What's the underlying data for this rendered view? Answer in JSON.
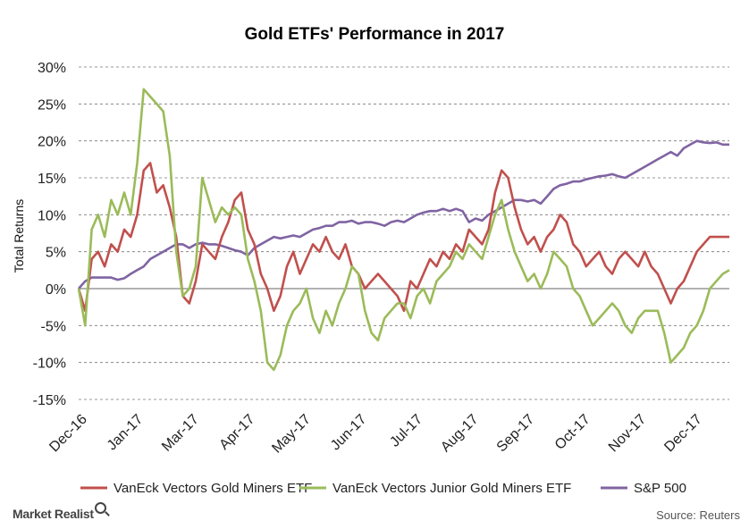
{
  "chart_data": {
    "type": "line",
    "title": "Gold ETFs' Performance in 2017",
    "ylabel": "Total Returns",
    "xlabel": "",
    "ylim": [
      -15,
      30
    ],
    "y_ticks": [
      "30%",
      "25%",
      "20%",
      "15%",
      "10%",
      "5%",
      "0%",
      "-5%",
      "-10%",
      "-15%"
    ],
    "y_tick_values": [
      30,
      25,
      20,
      15,
      10,
      5,
      0,
      -5,
      -10,
      -15
    ],
    "x_ticks": [
      "Dec-16",
      "Jan-17",
      "Mar-17",
      "Apr-17",
      "May-17",
      "Jun-17",
      "Jul-17",
      "Aug-17",
      "Sep-17",
      "Oct-17",
      "Nov-17",
      "Dec-17"
    ],
    "grid": "horizontal dashed",
    "legend_position": "bottom",
    "x_index_max": 100,
    "series": [
      {
        "name": "VanEck Vectors Gold Miners ETF",
        "color": "#c0504d",
        "x": [
          0,
          1,
          2,
          3,
          4,
          5,
          6,
          7,
          8,
          9,
          10,
          11,
          12,
          13,
          14,
          15,
          16,
          17,
          18,
          19,
          20,
          21,
          22,
          23,
          24,
          25,
          26,
          27,
          28,
          29,
          30,
          31,
          32,
          33,
          34,
          35,
          36,
          37,
          38,
          39,
          40,
          41,
          42,
          43,
          44,
          45,
          46,
          47,
          48,
          49,
          50,
          51,
          52,
          53,
          54,
          55,
          56,
          57,
          58,
          59,
          60,
          61,
          62,
          63,
          64,
          65,
          66,
          67,
          68,
          69,
          70,
          71,
          72,
          73,
          74,
          75,
          76,
          77,
          78,
          79,
          80,
          81,
          82,
          83,
          84,
          85,
          86,
          87,
          88,
          89,
          90,
          91,
          92,
          93,
          94,
          95,
          96,
          97,
          98,
          99,
          100
        ],
        "values": [
          0,
          -3,
          4,
          5,
          3,
          6,
          5,
          8,
          7,
          10,
          16,
          17,
          13,
          14,
          11,
          7,
          -1,
          -2,
          1,
          6,
          5,
          4,
          7,
          9,
          12,
          13,
          8,
          6,
          2,
          0,
          -3,
          -1,
          3,
          5,
          2,
          4,
          6,
          5,
          7,
          5,
          4,
          6,
          3,
          2,
          0,
          1,
          2,
          1,
          0,
          -1,
          -3,
          1,
          0,
          2,
          4,
          3,
          5,
          4,
          6,
          5,
          8,
          7,
          6,
          8,
          13,
          16,
          15,
          11,
          8,
          6,
          7,
          5,
          7,
          8,
          10,
          9,
          6,
          5,
          3,
          4,
          5,
          3,
          2,
          4,
          5,
          4,
          3,
          5,
          3,
          2,
          0,
          -2,
          0,
          1,
          3,
          5,
          6,
          7,
          7,
          7,
          7
        ]
      },
      {
        "name": "VanEck Vectors Junior Gold Miners ETF",
        "color": "#9bbb59",
        "x": [
          0,
          1,
          2,
          3,
          4,
          5,
          6,
          7,
          8,
          9,
          10,
          11,
          12,
          13,
          14,
          15,
          16,
          17,
          18,
          19,
          20,
          21,
          22,
          23,
          24,
          25,
          26,
          27,
          28,
          29,
          30,
          31,
          32,
          33,
          34,
          35,
          36,
          37,
          38,
          39,
          40,
          41,
          42,
          43,
          44,
          45,
          46,
          47,
          48,
          49,
          50,
          51,
          52,
          53,
          54,
          55,
          56,
          57,
          58,
          59,
          60,
          61,
          62,
          63,
          64,
          65,
          66,
          67,
          68,
          69,
          70,
          71,
          72,
          73,
          74,
          75,
          76,
          77,
          78,
          79,
          80,
          81,
          82,
          83,
          84,
          85,
          86,
          87,
          88,
          89,
          90,
          91,
          92,
          93,
          94,
          95,
          96,
          97,
          98,
          99,
          100
        ],
        "values": [
          0,
          -5,
          8,
          10,
          7,
          12,
          10,
          13,
          10,
          17,
          27,
          26,
          25,
          24,
          18,
          5,
          -1,
          0,
          3,
          15,
          12,
          9,
          11,
          10,
          11,
          10,
          4,
          1,
          -3,
          -10,
          -11,
          -9,
          -5,
          -3,
          -2,
          0,
          -4,
          -6,
          -3,
          -5,
          -2,
          0,
          3,
          2,
          -3,
          -6,
          -7,
          -4,
          -3,
          -2,
          -2,
          -4,
          -1,
          0,
          -2,
          1,
          2,
          3,
          5,
          4,
          6,
          5,
          4,
          7,
          10,
          12,
          8,
          5,
          3,
          1,
          2,
          0,
          2,
          5,
          4,
          3,
          0,
          -1,
          -3,
          -5,
          -4,
          -3,
          -2,
          -3,
          -5,
          -6,
          -4,
          -3,
          -3,
          -3,
          -6,
          -10,
          -9,
          -8,
          -6,
          -5,
          -3,
          0,
          1,
          2,
          2.5
        ]
      },
      {
        "name": "S&P 500",
        "color": "#8064a2",
        "x": [
          0,
          1,
          2,
          3,
          4,
          5,
          6,
          7,
          8,
          9,
          10,
          11,
          12,
          13,
          14,
          15,
          16,
          17,
          18,
          19,
          20,
          21,
          22,
          23,
          24,
          25,
          26,
          27,
          28,
          29,
          30,
          31,
          32,
          33,
          34,
          35,
          36,
          37,
          38,
          39,
          40,
          41,
          42,
          43,
          44,
          45,
          46,
          47,
          48,
          49,
          50,
          51,
          52,
          53,
          54,
          55,
          56,
          57,
          58,
          59,
          60,
          61,
          62,
          63,
          64,
          65,
          66,
          67,
          68,
          69,
          70,
          71,
          72,
          73,
          74,
          75,
          76,
          77,
          78,
          79,
          80,
          81,
          82,
          83,
          84,
          85,
          86,
          87,
          88,
          89,
          90,
          91,
          92,
          93,
          94,
          95,
          96,
          97,
          98,
          99,
          100
        ],
        "values": [
          0,
          1,
          1.5,
          1.5,
          1.5,
          1.5,
          1.2,
          1.4,
          2,
          2.5,
          3,
          4,
          4.5,
          5,
          5.5,
          6,
          6,
          5.5,
          6,
          6.2,
          6,
          6,
          5.8,
          5.5,
          5.2,
          5,
          4.5,
          5.5,
          6,
          6.5,
          7,
          6.8,
          7,
          7.2,
          7,
          7.5,
          8,
          8.2,
          8.5,
          8.5,
          9,
          9,
          9.2,
          8.8,
          9,
          9,
          8.8,
          8.5,
          9,
          9.2,
          9,
          9.5,
          10,
          10.3,
          10.5,
          10.5,
          10.8,
          10.5,
          10.8,
          10.5,
          9,
          9.5,
          9.2,
          10,
          10.5,
          11,
          11.5,
          12,
          12,
          11.8,
          12,
          11.5,
          12.5,
          13.5,
          14,
          14.2,
          14.5,
          14.5,
          14.8,
          15,
          15.2,
          15.3,
          15.5,
          15.2,
          15,
          15.5,
          16,
          16.5,
          17,
          17.5,
          18,
          18.5,
          18,
          19,
          19.5,
          20,
          19.8,
          19.7,
          19.8,
          19.5,
          19.5
        ]
      }
    ]
  },
  "footer": {
    "brand": "Market Realist",
    "source": "Source: Reuters"
  }
}
